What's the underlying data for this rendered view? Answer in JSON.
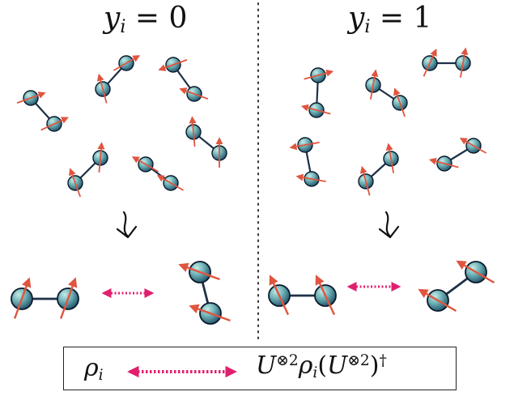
{
  "colors": {
    "arrow": "#e0553f",
    "double_arrow": "#e0206e",
    "bond": "#1d3047",
    "atom_edge": "#0b1a2c",
    "atom_light": "#a9d6d2",
    "atom_dark": "#1f5e73",
    "divider": "#333333"
  },
  "panels": {
    "left": {
      "title_var": "y",
      "title_sub": "i",
      "title_rest": " = 0"
    },
    "right": {
      "title_var": "y",
      "title_sub": "i",
      "title_rest": " = 1"
    }
  },
  "legend": {
    "left_var": "ρ",
    "left_sub": "i",
    "right_U": "U",
    "right_sup1": "⊗2",
    "right_rho": "ρ",
    "right_sub": "i",
    "right_paren_open": "(",
    "right_U2": "U",
    "right_sup2": "⊗2",
    "right_paren_close": ")",
    "right_dagger": "†"
  },
  "icons": [
    "squiggle-arrow-icon",
    "double-arrow-icon"
  ]
}
